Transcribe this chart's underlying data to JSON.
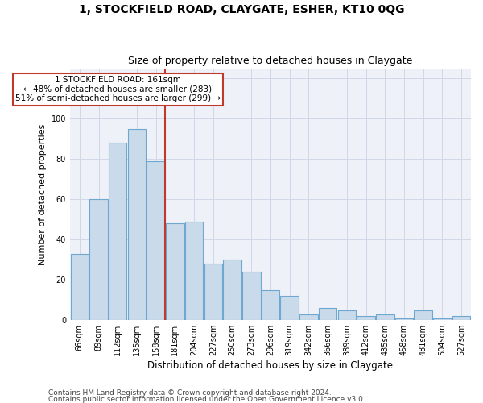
{
  "title1": "1, STOCKFIELD ROAD, CLAYGATE, ESHER, KT10 0QG",
  "title2": "Size of property relative to detached houses in Claygate",
  "xlabel": "Distribution of detached houses by size in Claygate",
  "ylabel": "Number of detached properties",
  "categories": [
    "66sqm",
    "89sqm",
    "112sqm",
    "135sqm",
    "158sqm",
    "181sqm",
    "204sqm",
    "227sqm",
    "250sqm",
    "273sqm",
    "296sqm",
    "319sqm",
    "342sqm",
    "366sqm",
    "389sqm",
    "412sqm",
    "435sqm",
    "458sqm",
    "481sqm",
    "504sqm",
    "527sqm"
  ],
  "values": [
    33,
    60,
    88,
    95,
    79,
    48,
    49,
    28,
    30,
    24,
    15,
    12,
    3,
    6,
    5,
    2,
    3,
    1,
    5,
    1,
    2
  ],
  "bar_color": "#c9daea",
  "bar_edge_color": "#6ea8d0",
  "highlight_index": 4,
  "vline_color": "#c0392b",
  "annotation_title": "1 STOCKFIELD ROAD: 161sqm",
  "annotation_line1": "← 48% of detached houses are smaller (283)",
  "annotation_line2": "51% of semi-detached houses are larger (299) →",
  "annotation_box_color": "white",
  "annotation_box_edge": "#c0392b",
  "ylim": [
    0,
    125
  ],
  "yticks": [
    0,
    20,
    40,
    60,
    80,
    100,
    120
  ],
  "grid_color": "#d0d8e8",
  "background_color": "#eef2f8",
  "footer1": "Contains HM Land Registry data © Crown copyright and database right 2024.",
  "footer2": "Contains public sector information licensed under the Open Government Licence v3.0.",
  "title1_fontsize": 10,
  "title2_fontsize": 9,
  "xlabel_fontsize": 8.5,
  "ylabel_fontsize": 8,
  "tick_fontsize": 7,
  "footer_fontsize": 6.5,
  "annotation_fontsize": 7.5
}
